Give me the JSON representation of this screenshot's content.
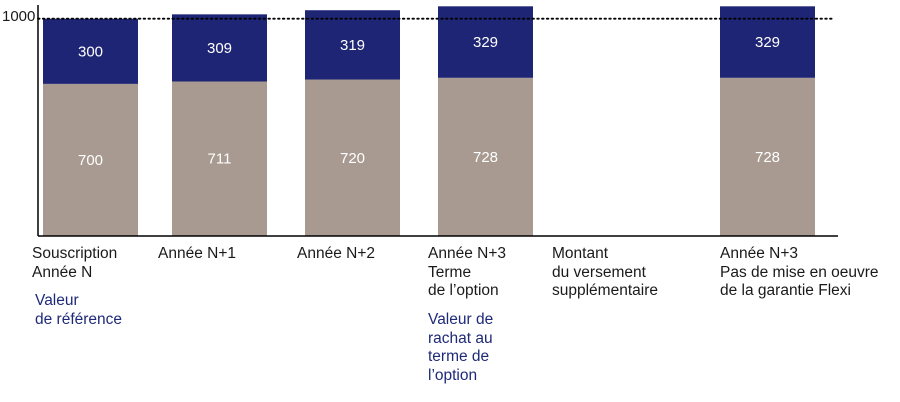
{
  "chart_data": {
    "type": "bar",
    "stacked": true,
    "reference_line": {
      "value": 1000,
      "label": "1000",
      "style": "dotted"
    },
    "categories": [
      "Souscription\nAnnée N",
      "Année N+1",
      "Année N+2",
      "Année N+3\nTerme\nde l’option",
      "Montant\ndu versement\nsupplémentaire",
      "Année N+3\nPas de mise en oeuvre\nde la garantie Flexi"
    ],
    "notes": [
      "Valeur\nde référence",
      "",
      "",
      "Valeur de\nrachat au\nterme de\nl’option",
      "",
      ""
    ],
    "series": [
      {
        "values": [
          700,
          711,
          720,
          728,
          null,
          728
        ],
        "color": "#a89a90"
      },
      {
        "values": [
          300,
          309,
          319,
          329,
          null,
          329
        ],
        "color": "#1e2574"
      }
    ],
    "data_labels": [
      [
        "700",
        "711",
        "720",
        "728",
        "",
        "728"
      ],
      [
        "300",
        "309",
        "319",
        "329",
        "",
        "329"
      ]
    ],
    "ylim": [
      0,
      1063
    ],
    "grid": false,
    "legend": "none",
    "colors": {
      "axis": "#000000",
      "label_dark": "#1a1a1a",
      "label_note": "#1e2a78",
      "bar_label": "#ffffff"
    }
  }
}
